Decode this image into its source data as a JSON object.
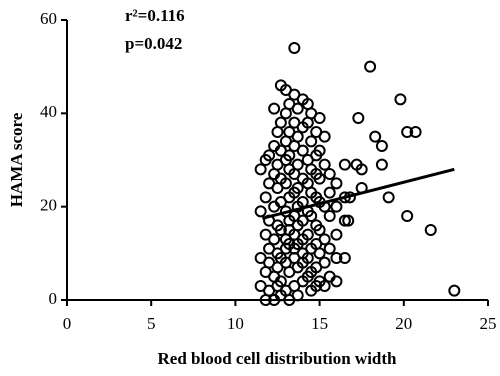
{
  "chart_data": {
    "type": "scatter",
    "x_label": "Red blood cell distribution width",
    "y_label": "HAMA score",
    "annotations": [
      "r²=0.116",
      "p=0.042"
    ],
    "xlim": [
      0,
      25
    ],
    "xticks": [
      0,
      5,
      10,
      15,
      20,
      25
    ],
    "ylim": [
      0,
      60
    ],
    "yticks": [
      0,
      20,
      40,
      60
    ],
    "color": "#000000",
    "x": [
      11.5,
      11.5,
      11.5,
      11.5,
      11.8,
      11.8,
      11.8,
      11.8,
      11.8,
      12.0,
      12.0,
      12.0,
      12.0,
      12.0,
      12.0,
      12.3,
      12.3,
      12.3,
      12.3,
      12.3,
      12.3,
      12.3,
      12.5,
      12.5,
      12.5,
      12.5,
      12.5,
      12.5,
      12.5,
      12.7,
      12.7,
      12.7,
      12.7,
      12.7,
      12.7,
      12.7,
      12.7,
      12.7,
      13.0,
      13.0,
      13.0,
      13.0,
      13.0,
      13.0,
      13.0,
      13.0,
      13.0,
      13.0,
      13.2,
      13.2,
      13.2,
      13.2,
      13.2,
      13.2,
      13.2,
      13.2,
      13.2,
      13.2,
      13.5,
      13.5,
      13.5,
      13.5,
      13.5,
      13.5,
      13.5,
      13.5,
      13.5,
      13.5,
      13.5,
      13.7,
      13.7,
      13.7,
      13.7,
      13.7,
      13.7,
      13.7,
      13.7,
      13.7,
      14.0,
      14.0,
      14.0,
      14.0,
      14.0,
      14.0,
      14.0,
      14.0,
      14.0,
      14.0,
      14.3,
      14.3,
      14.3,
      14.3,
      14.3,
      14.3,
      14.3,
      14.3,
      14.5,
      14.5,
      14.5,
      14.5,
      14.5,
      14.5,
      14.5,
      14.5,
      14.8,
      14.8,
      14.8,
      14.8,
      14.8,
      14.8,
      14.8,
      14.8,
      15.0,
      15.0,
      15.0,
      15.0,
      15.0,
      15.0,
      15.0,
      15.3,
      15.3,
      15.3,
      15.3,
      15.3,
      15.3,
      15.6,
      15.6,
      15.6,
      15.6,
      15.6,
      16.0,
      16.0,
      16.0,
      16.0,
      16.0,
      16.5,
      16.5,
      16.5,
      16.5,
      18.0,
      19.8,
      17.3,
      18.3,
      18.7,
      20.2,
      20.7,
      17.2,
      18.7,
      17.5,
      19.1,
      16.8,
      17.5,
      20.2,
      21.6,
      16.7,
      23.0
    ],
    "y": [
      28,
      19,
      9,
      3,
      30,
      22,
      14,
      6,
      0,
      31,
      25,
      17,
      11,
      2,
      8,
      41,
      33,
      27,
      20,
      13,
      5,
      0,
      36,
      29,
      24,
      16,
      10,
      3,
      7,
      46,
      38,
      32,
      26,
      21,
      15,
      9,
      1,
      4,
      45,
      40,
      34,
      30,
      25,
      19,
      13,
      8,
      2,
      11,
      42,
      36,
      31,
      28,
      22,
      17,
      12,
      6,
      0,
      15,
      54,
      44,
      38,
      33,
      27,
      23,
      18,
      14,
      9,
      3,
      11,
      41,
      35,
      29,
      24,
      20,
      16,
      12,
      7,
      1,
      43,
      37,
      32,
      26,
      21,
      17,
      13,
      8,
      4,
      10,
      42,
      38,
      30,
      25,
      19,
      14,
      9,
      5,
      40,
      34,
      28,
      23,
      18,
      11,
      6,
      2,
      36,
      31,
      27,
      22,
      16,
      12,
      7,
      3,
      39,
      32,
      26,
      21,
      15,
      10,
      4,
      35,
      29,
      20,
      13,
      8,
      3,
      27,
      23,
      18,
      11,
      5,
      25,
      20,
      14,
      9,
      4,
      29,
      22,
      17,
      9,
      50,
      43,
      39,
      35,
      33,
      36,
      36,
      29,
      29,
      24,
      22,
      22,
      28,
      18,
      15,
      17,
      2
    ],
    "fit_line": {
      "x": [
        11.6,
        23.0
      ],
      "y": [
        17.5,
        28.0
      ]
    }
  }
}
